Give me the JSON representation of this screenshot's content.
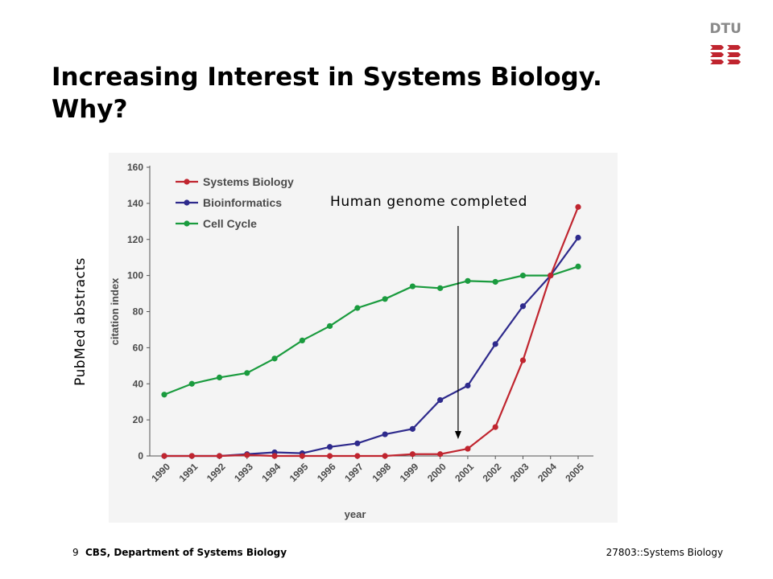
{
  "slide": {
    "title": "Increasing Interest in Systems Biology. Why?",
    "logo_text": "DTU",
    "page_number": "9",
    "department": "CBS, Department of Systems Biology",
    "course": "27803::Systems Biology"
  },
  "annotations": {
    "pubmed_label": "PubMed abstracts",
    "genome_note": "Human genome completed"
  },
  "colors": {
    "systems_biology": "#c0252f",
    "bioinformatics": "#2e2a8c",
    "cell_cycle": "#1a9b3e",
    "logo_red": "#c0252f",
    "logo_grey": "#8a8a8a"
  },
  "chart_data": {
    "type": "line",
    "xlabel": "year",
    "ylabel": "citation index",
    "ylim": [
      0,
      160
    ],
    "yticks": [
      "0",
      "20",
      "40",
      "60",
      "80",
      "100",
      "120",
      "140",
      "160"
    ],
    "categories": [
      "1990",
      "1991",
      "1992",
      "1993",
      "1994",
      "1995",
      "1996",
      "1997",
      "1998",
      "1999",
      "2000",
      "2001",
      "2002",
      "2003",
      "2004",
      "2005"
    ],
    "legend_position": "top-left",
    "grid": false,
    "series": [
      {
        "name": "Systems Biology",
        "color": "#c0252f",
        "values": [
          0,
          0,
          0,
          0.5,
          0,
          0,
          0,
          0,
          0,
          1,
          1,
          4,
          16,
          53,
          100,
          138
        ]
      },
      {
        "name": "Bioinformatics",
        "color": "#2e2a8c",
        "values": [
          0,
          0,
          0,
          1,
          2,
          1.5,
          5,
          7,
          12,
          15,
          31,
          39,
          62,
          83,
          100,
          121
        ]
      },
      {
        "name": "Cell Cycle",
        "color": "#1a9b3e",
        "values": [
          34,
          40,
          43.5,
          46,
          54,
          64,
          72,
          82,
          87,
          94,
          93,
          97,
          96.5,
          100,
          100,
          105
        ]
      }
    ],
    "marker": {
      "year": "2001",
      "label_ref": "annotations.genome_note"
    }
  }
}
